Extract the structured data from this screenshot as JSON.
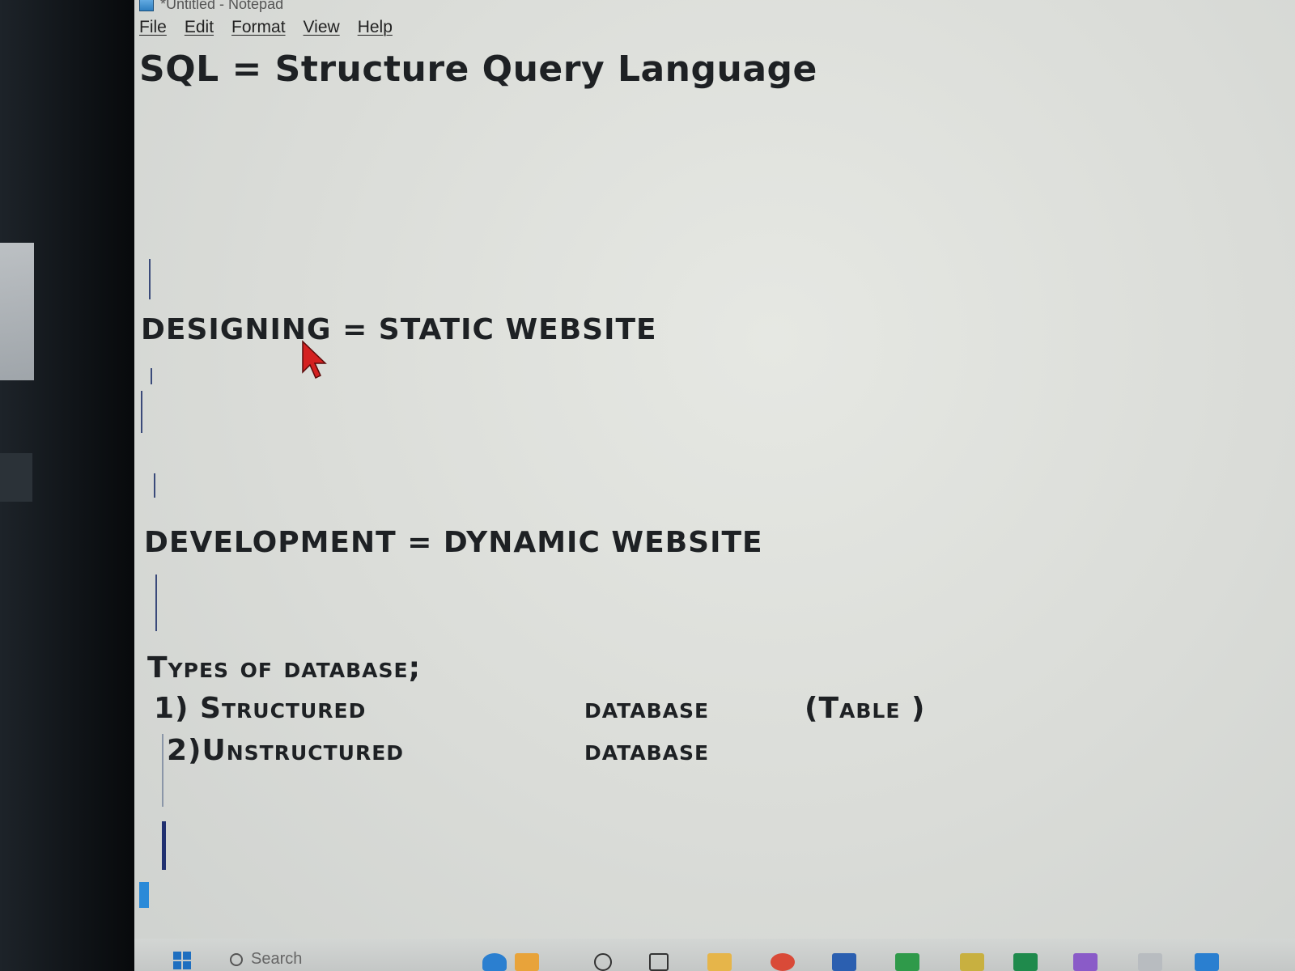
{
  "window": {
    "title": "*Untitled - Notepad"
  },
  "menu": {
    "items": [
      "File",
      "Edit",
      "Format",
      "View",
      "Help"
    ]
  },
  "document": {
    "line1": "SQL = Structure Query Language",
    "line2": "DESIGNING = STATIC WEBSITE",
    "line3": "DEVELOPMENT = DYNAMIC WEBSITE",
    "line4": "Types of database;",
    "item1_left": "1) Structured",
    "item1_mid": "database",
    "item1_right": "(Table )",
    "item2_left": "2)Unstructured",
    "item2_mid": "database"
  },
  "taskbar": {
    "search_placeholder": "Search"
  },
  "colors": {
    "pointer": "#d42020",
    "accent": "#2a8ad8"
  }
}
